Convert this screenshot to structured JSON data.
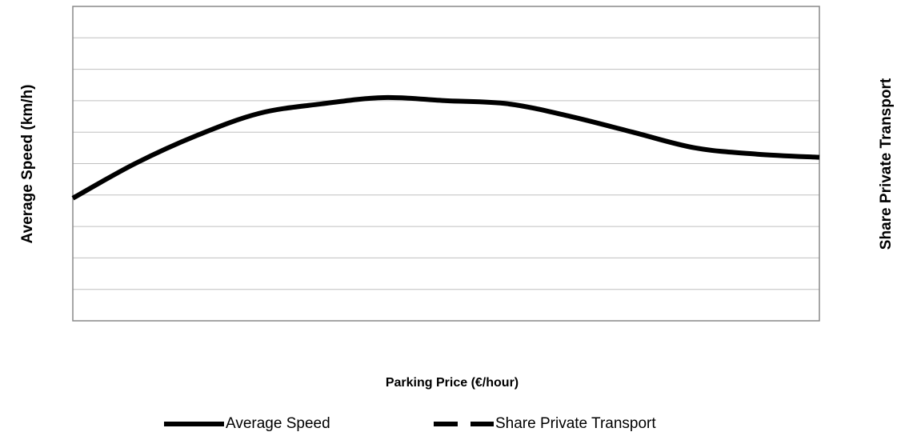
{
  "chart_data": {
    "type": "line",
    "xlabel": "Parking Price (€/hour)",
    "ylabel": "Average Speed (km/h)",
    "y2label": "Share Private Transport",
    "x": [
      0,
      1,
      2,
      3,
      4,
      5,
      6,
      7,
      8,
      9,
      10,
      11,
      12
    ],
    "xlim": [
      0,
      12
    ],
    "ylim": [
      0,
      10
    ],
    "yticks": [
      0,
      1,
      2,
      3,
      4,
      5,
      6,
      7,
      8,
      9,
      10
    ],
    "grid": true,
    "series": [
      {
        "name": "Average Speed",
        "color": "#000000",
        "dash": "solid",
        "values": [
          3.9,
          5.0,
          5.9,
          6.6,
          6.9,
          7.1,
          7.0,
          6.9,
          6.5,
          6.0,
          5.5,
          5.3,
          5.2
        ]
      },
      {
        "name": "Share Private Transport",
        "color": "#000000",
        "dash": "dashed",
        "values": [
          null,
          null,
          null,
          null,
          null,
          null,
          null,
          null,
          null,
          null,
          null,
          null,
          null
        ]
      }
    ]
  }
}
